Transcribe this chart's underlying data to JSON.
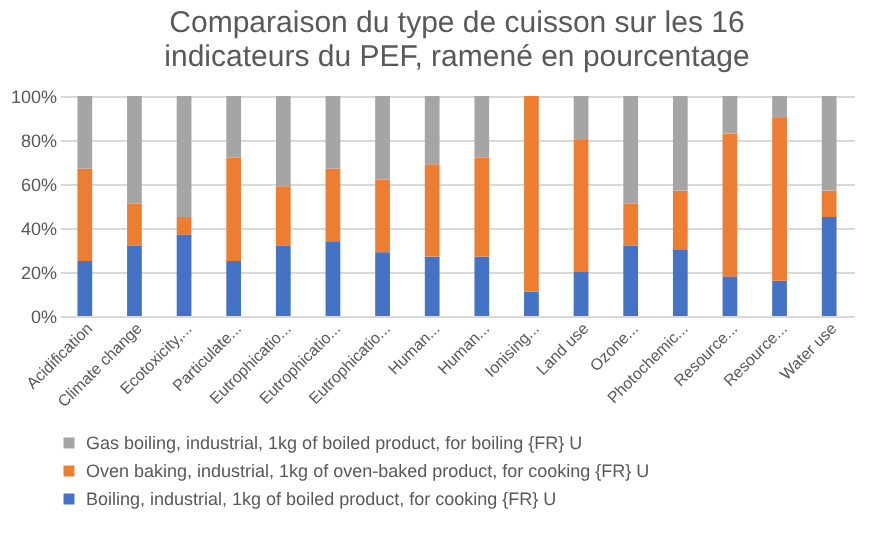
{
  "chart_data": {
    "type": "bar",
    "stacked": true,
    "title": "Comparaison du type de cuisson sur les 16 indicateurs du PEF, ramené en pourcentage",
    "categories": [
      "Acidification",
      "Climate change",
      "Ecotoxicity,...",
      "Particulate...",
      "Eutrophicatio...",
      "Eutrophicatio...",
      "Eutrophicatio...",
      "Human...",
      "Human...",
      "Ionising...",
      "Land use",
      "Ozone...",
      "Photochemic...",
      "Resource...",
      "Resource...",
      "Water use"
    ],
    "series": [
      {
        "name": "Boiling, industrial, 1kg of boiled product, for cooking {FR} U",
        "color": "#4472c4",
        "values": [
          25,
          32,
          37,
          25,
          32,
          34,
          29,
          27,
          27,
          11,
          20,
          32,
          30,
          18,
          16,
          45
        ]
      },
      {
        "name": "Oven baking, industrial, 1kg of oven-baked product, for cooking {FR} U",
        "color": "#ed7d31",
        "values": [
          42,
          19,
          8,
          47,
          27,
          33,
          33,
          42,
          45,
          89,
          60,
          19,
          27,
          65,
          74,
          12
        ]
      },
      {
        "name": "Gas boiling, industrial, 1kg of boiled product, for boiling {FR} U",
        "color": "#a5a5a5",
        "values": [
          33,
          49,
          55,
          28,
          41,
          33,
          38,
          31,
          28,
          null,
          20,
          49,
          43,
          17,
          10,
          43
        ]
      }
    ],
    "ylim": [
      0,
      100
    ],
    "yticks": [
      {
        "value": 0,
        "label": "0%"
      },
      {
        "value": 20,
        "label": "20%"
      },
      {
        "value": 40,
        "label": "40%"
      },
      {
        "value": 60,
        "label": "60%"
      },
      {
        "value": 80,
        "label": "80%"
      },
      {
        "value": 100,
        "label": "100%"
      }
    ],
    "grid": "y",
    "legend": "bottom"
  }
}
